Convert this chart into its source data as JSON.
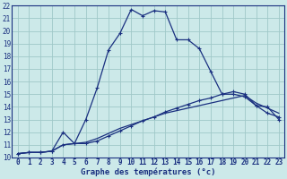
{
  "title": "Graphe des températures (°c)",
  "bg_color": "#cce9e9",
  "line_color": "#1a3080",
  "grid_color": "#9fc8c8",
  "xlim": [
    -0.5,
    23.5
  ],
  "ylim": [
    10,
    22
  ],
  "x_ticks": [
    0,
    1,
    2,
    3,
    4,
    5,
    6,
    7,
    8,
    9,
    10,
    11,
    12,
    13,
    14,
    15,
    16,
    17,
    18,
    19,
    20,
    21,
    22,
    23
  ],
  "y_ticks": [
    10,
    11,
    12,
    13,
    14,
    15,
    16,
    17,
    18,
    19,
    20,
    21,
    22
  ],
  "series1_x": [
    0,
    1,
    2,
    3,
    4,
    5,
    6,
    7,
    8,
    9,
    10,
    11,
    12,
    13,
    14,
    15,
    16,
    17,
    18,
    19,
    20,
    21,
    22,
    23
  ],
  "series1_y": [
    10.3,
    10.4,
    10.4,
    10.5,
    11.0,
    11.1,
    13.0,
    15.5,
    18.5,
    19.8,
    21.7,
    21.2,
    21.6,
    21.5,
    19.3,
    19.3,
    18.6,
    16.8,
    15.0,
    15.0,
    14.8,
    14.1,
    14.0,
    13.0
  ],
  "series2_x": [
    0,
    1,
    2,
    3,
    4,
    5,
    6,
    7,
    8,
    9,
    10,
    11,
    12,
    13,
    14,
    15,
    16,
    17,
    18,
    19,
    20,
    21,
    22,
    23
  ],
  "series2_y": [
    10.3,
    10.4,
    10.4,
    10.5,
    12.0,
    11.1,
    11.1,
    11.3,
    11.7,
    12.1,
    12.5,
    12.9,
    13.2,
    13.6,
    13.9,
    14.2,
    14.5,
    14.7,
    15.0,
    15.2,
    15.0,
    14.1,
    13.5,
    13.2
  ],
  "series3_x": [
    0,
    1,
    2,
    3,
    4,
    5,
    6,
    7,
    8,
    9,
    10,
    11,
    12,
    13,
    14,
    15,
    16,
    17,
    18,
    19,
    20,
    21,
    22,
    23
  ],
  "series3_y": [
    10.3,
    10.4,
    10.4,
    10.5,
    11.0,
    11.1,
    11.2,
    11.5,
    11.9,
    12.3,
    12.6,
    12.9,
    13.2,
    13.5,
    13.7,
    13.9,
    14.1,
    14.3,
    14.5,
    14.7,
    14.9,
    14.3,
    13.9,
    13.5
  ],
  "xlabel_fontsize": 6.5,
  "tick_fontsize": 5.5
}
